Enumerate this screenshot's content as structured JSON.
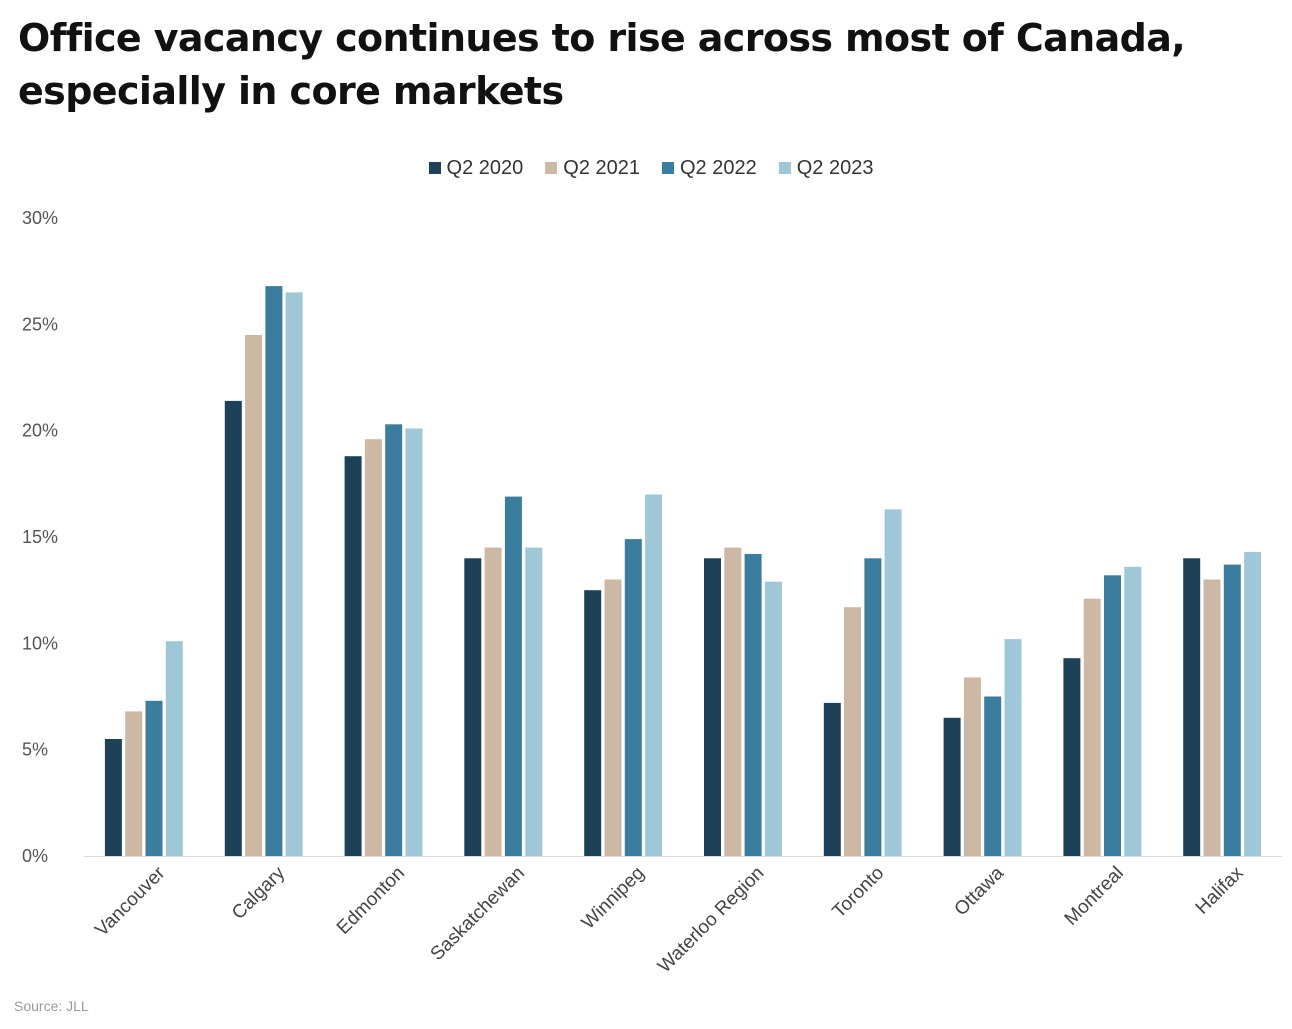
{
  "chart_data": {
    "type": "bar",
    "title": "Office vacancy continues to rise across most of Canada, especially in core markets",
    "categories": [
      "Vancouver",
      "Calgary",
      "Edmonton",
      "Saskatchewan",
      "Winnipeg",
      "Waterloo Region",
      "Toronto",
      "Ottawa",
      "Montreal",
      "Halifax"
    ],
    "series": [
      {
        "name": "Q2 2020",
        "color": "#1d4258",
        "values": [
          5.5,
          21.4,
          18.8,
          14.0,
          12.5,
          14.0,
          7.2,
          6.5,
          9.3,
          14.0
        ]
      },
      {
        "name": "Q2 2021",
        "color": "#cdb8a3",
        "values": [
          6.8,
          24.5,
          19.6,
          14.5,
          13.0,
          14.5,
          11.7,
          8.4,
          12.1,
          13.0
        ]
      },
      {
        "name": "Q2 2022",
        "color": "#3a7d9f",
        "values": [
          7.3,
          26.8,
          20.3,
          16.9,
          14.9,
          14.2,
          14.0,
          7.5,
          13.2,
          13.7
        ]
      },
      {
        "name": "Q2 2023",
        "color": "#9ec8d7",
        "values": [
          10.1,
          26.5,
          20.1,
          14.5,
          17.0,
          12.9,
          16.3,
          10.2,
          13.6,
          14.3
        ]
      }
    ],
    "yticks": [
      "0%",
      "5%",
      "10%",
      "15%",
      "20%",
      "25%",
      "30%"
    ],
    "ylim": [
      0,
      30
    ],
    "grid": false,
    "legend_position": "top-center",
    "source": "Source: JLL"
  }
}
